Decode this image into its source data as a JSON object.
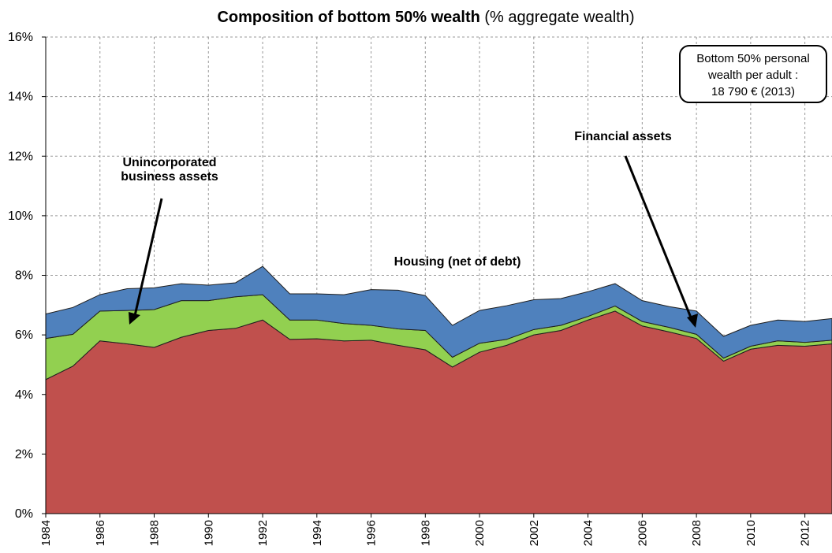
{
  "chart_data": {
    "type": "stacked-area",
    "title": "Composition of bottom 50% wealth",
    "title_note": "(% aggregate wealth)",
    "x": [
      1984,
      1985,
      1986,
      1987,
      1988,
      1989,
      1990,
      1991,
      1992,
      1993,
      1994,
      1995,
      1996,
      1997,
      1998,
      1999,
      2000,
      2001,
      2002,
      2003,
      2004,
      2005,
      2006,
      2007,
      2008,
      2009,
      2010,
      2011,
      2012,
      2013
    ],
    "series": [
      {
        "name": "Housing (net of debt)",
        "color": "#c0504d",
        "values": [
          4.5,
          4.95,
          5.8,
          5.7,
          5.58,
          5.92,
          6.15,
          6.22,
          6.5,
          5.85,
          5.87,
          5.8,
          5.82,
          5.65,
          5.5,
          4.92,
          5.42,
          5.65,
          6.0,
          6.15,
          6.5,
          6.8,
          6.3,
          6.1,
          5.88,
          5.12,
          5.52,
          5.65,
          5.62,
          5.7
        ]
      },
      {
        "name": "Unincorporated business assets",
        "color": "#92d050",
        "values": [
          1.38,
          1.07,
          1.0,
          1.12,
          1.27,
          1.23,
          1.0,
          1.06,
          0.85,
          0.65,
          0.63,
          0.58,
          0.5,
          0.55,
          0.65,
          0.33,
          0.3,
          0.2,
          0.18,
          0.17,
          0.12,
          0.17,
          0.15,
          0.15,
          0.14,
          0.1,
          0.1,
          0.15,
          0.13,
          0.12
        ]
      },
      {
        "name": "Financial assets",
        "color": "#4f81bd",
        "values": [
          0.82,
          0.9,
          0.55,
          0.73,
          0.73,
          0.57,
          0.52,
          0.47,
          0.95,
          0.88,
          0.88,
          0.97,
          1.2,
          1.3,
          1.17,
          1.07,
          1.1,
          1.13,
          1.0,
          0.9,
          0.83,
          0.75,
          0.7,
          0.7,
          0.78,
          0.73,
          0.7,
          0.7,
          0.7,
          0.73
        ]
      }
    ],
    "xlim": [
      1984,
      2013
    ],
    "xticks": [
      1984,
      1986,
      1988,
      1990,
      1992,
      1994,
      1996,
      1998,
      2000,
      2002,
      2004,
      2006,
      2008,
      2010,
      2012
    ],
    "ylim": [
      0,
      16
    ],
    "yticks": [
      {
        "value": 0,
        "label": "0%"
      },
      {
        "value": 2,
        "label": "2%"
      },
      {
        "value": 4,
        "label": "4%"
      },
      {
        "value": 6,
        "label": "6%"
      },
      {
        "value": 8,
        "label": "8%"
      },
      {
        "value": 10,
        "label": "10%"
      },
      {
        "value": 12,
        "label": "12%"
      },
      {
        "value": 14,
        "label": "14%"
      },
      {
        "value": 16,
        "label": "16%"
      }
    ],
    "grid": true,
    "note_box": [
      "Bottom 50% personal",
      "wealth per adult :",
      "18 790 € (2013)"
    ]
  }
}
